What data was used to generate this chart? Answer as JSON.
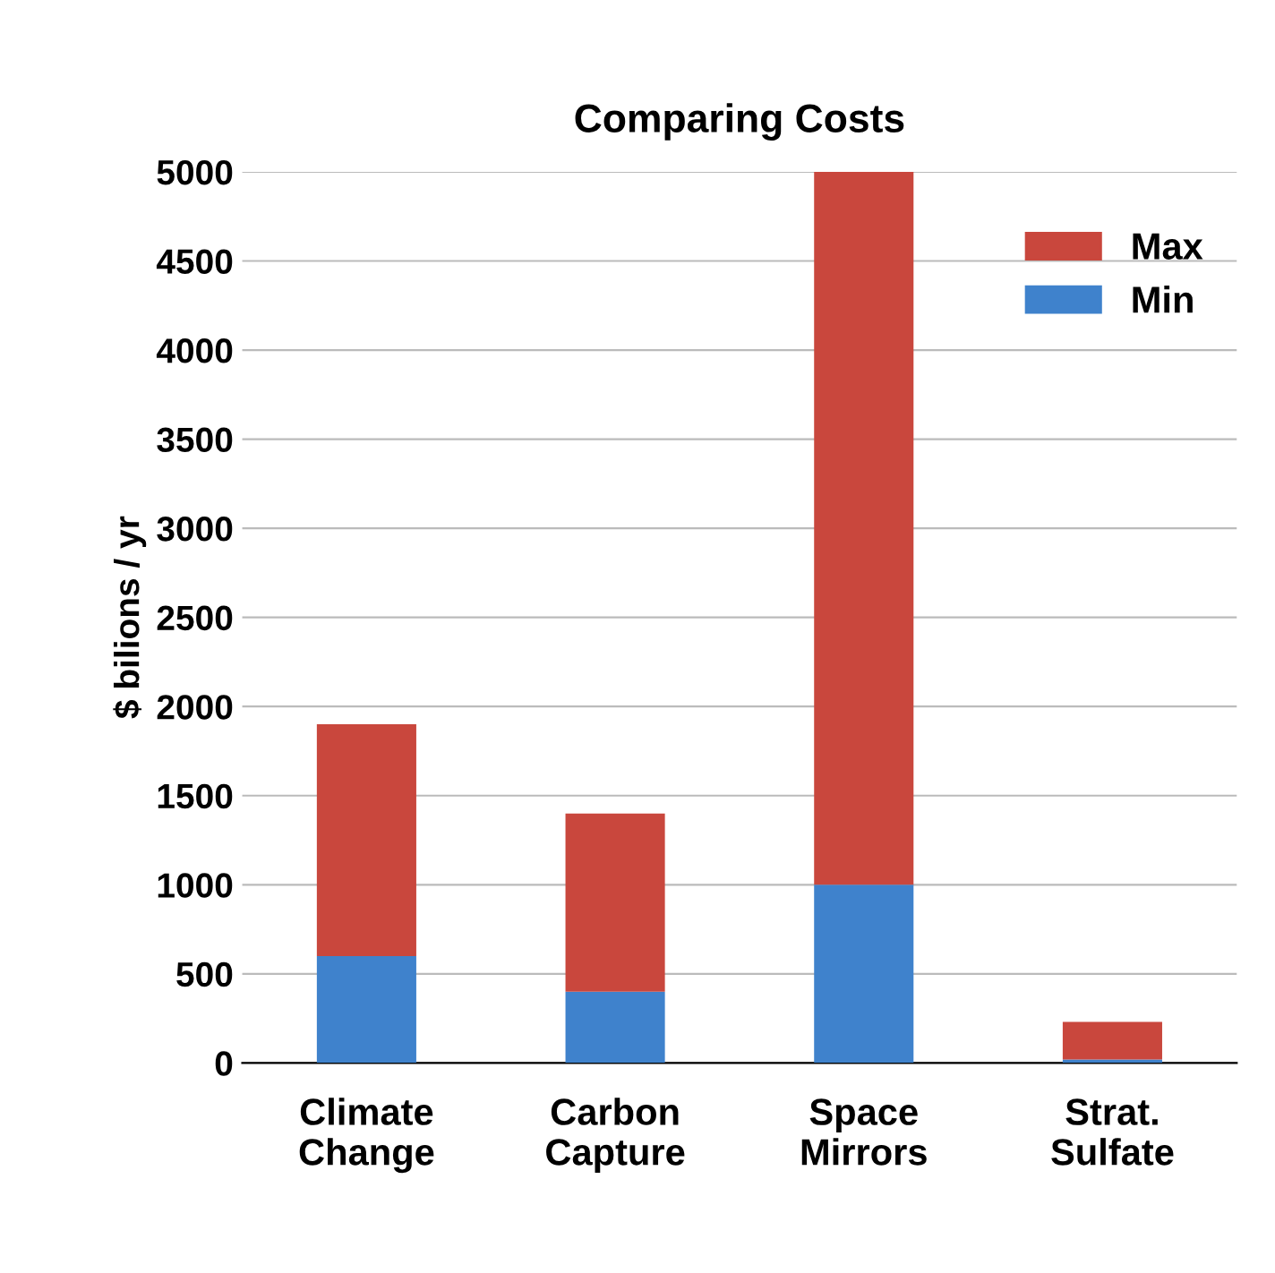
{
  "chart_data": {
    "type": "bar",
    "title": "Comparing Costs",
    "ylabel": "$ bilions / yr",
    "categories": [
      "Climate\nChange",
      "Carbon\nCapture",
      "Space\nMirrors",
      "Strat.\nSulfate"
    ],
    "stacked": true,
    "series": [
      {
        "name": "Min",
        "color": "#3f82cc",
        "values": [
          600,
          400,
          1000,
          20
        ]
      },
      {
        "name": "Max",
        "color": "#c9473d",
        "values": [
          1300,
          1000,
          4000,
          210
        ]
      }
    ],
    "ylim": [
      0,
      5000
    ],
    "yticks": [
      0,
      500,
      1000,
      1500,
      2000,
      2500,
      3000,
      3500,
      4000,
      4500,
      5000
    ],
    "grid": "y",
    "legend": "top right"
  }
}
